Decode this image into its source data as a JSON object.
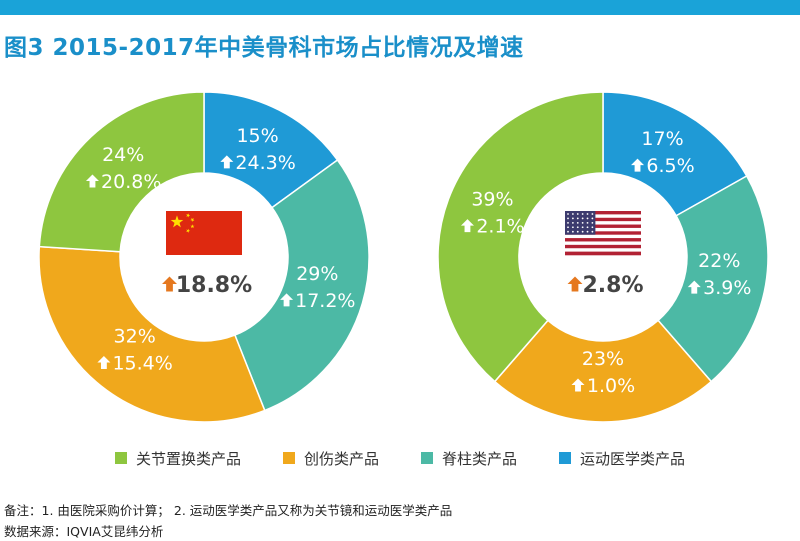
{
  "title": "图3 2015-2017年中美骨科市场占比情况及增速",
  "colors": {
    "joint": "#8ec63f",
    "trauma": "#f0a81c",
    "spine": "#4cb9a5",
    "sports": "#1f9ad6",
    "arrow": "#e5781f",
    "title": "#1a8fc9"
  },
  "legend": [
    {
      "label": "关节置换类产品",
      "color": "#8ec63f"
    },
    {
      "label": "创伤类产品",
      "color": "#f0a81c"
    },
    {
      "label": "脊柱类产品",
      "color": "#4cb9a5"
    },
    {
      "label": "运动医学类产品",
      "color": "#1f9ad6"
    }
  ],
  "chart_data": [
    {
      "type": "pie",
      "country_flag": "china-flag",
      "center_growth": "18.8%",
      "slices": [
        {
          "name": "运动医学类产品",
          "share": 15,
          "share_label": "15%",
          "growth_label": "24.3%",
          "color": "#1f9ad6"
        },
        {
          "name": "脊柱类产品",
          "share": 29,
          "share_label": "29%",
          "growth_label": "17.2%",
          "color": "#4cb9a5"
        },
        {
          "name": "创伤类产品",
          "share": 32,
          "share_label": "32%",
          "growth_label": "15.4%",
          "color": "#f0a81c"
        },
        {
          "name": "关节置换类产品",
          "share": 24,
          "share_label": "24%",
          "growth_label": "20.8%",
          "color": "#8ec63f"
        }
      ]
    },
    {
      "type": "pie",
      "country_flag": "usa-flag",
      "center_growth": "2.8%",
      "slices": [
        {
          "name": "运动医学类产品",
          "share": 17,
          "share_label": "17%",
          "growth_label": "6.5%",
          "color": "#1f9ad6"
        },
        {
          "name": "脊柱类产品",
          "share": 22,
          "share_label": "22%",
          "growth_label": "3.9%",
          "color": "#4cb9a5"
        },
        {
          "name": "创伤类产品",
          "share": 23,
          "share_label": "23%",
          "growth_label": "1.0%",
          "color": "#f0a81c"
        },
        {
          "name": "关节置换类产品",
          "share": 39,
          "share_label": "39%",
          "growth_label": "2.1%",
          "color": "#8ec63f"
        }
      ]
    }
  ],
  "footnotes": {
    "note": "备注：1. 由医院采购价计算； 2. 运动医学类产品又称为关节镜和运动医学类产品",
    "source": "数据来源：IQVIA艾昆纬分析"
  }
}
